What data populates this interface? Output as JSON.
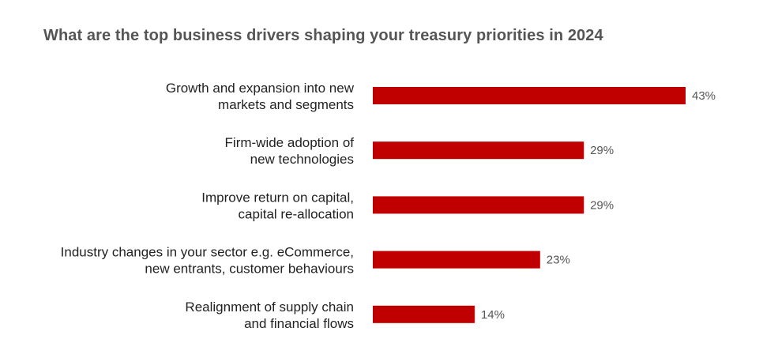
{
  "colors": {
    "bar": "#c00000",
    "title": "#555555",
    "label": "#222222",
    "value": "#555555"
  },
  "chart_data": {
    "type": "bar",
    "orientation": "horizontal",
    "title": "What are the top business drivers shaping your treasury priorities in 2024",
    "categories": [
      [
        "Growth and expansion into new",
        "markets and segments"
      ],
      [
        "Firm-wide adoption of",
        "new technologies"
      ],
      [
        "Improve return on capital,",
        "capital re-allocation"
      ],
      [
        "Industry changes in your sector e.g. eCommerce,",
        "new entrants, customer behaviours"
      ],
      [
        "Realignment of supply chain",
        "and financial flows"
      ]
    ],
    "values": [
      43,
      29,
      29,
      23,
      14
    ],
    "value_labels": [
      "43%",
      "29%",
      "29%",
      "23%",
      "14%"
    ],
    "unit": "%",
    "xlim": [
      0,
      43
    ],
    "grid": false,
    "legend": "none"
  }
}
